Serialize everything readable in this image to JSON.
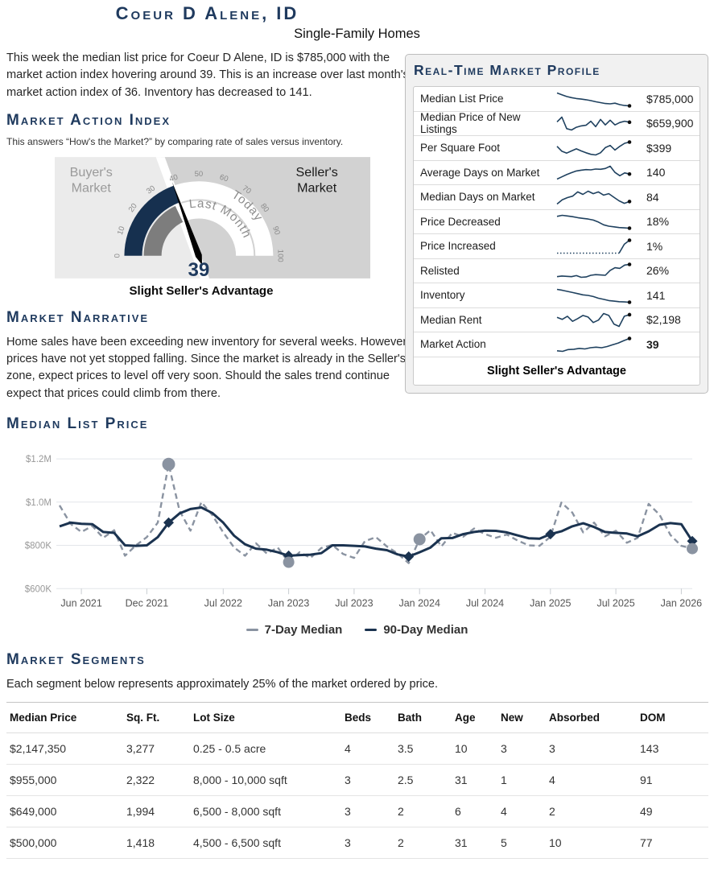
{
  "header": {
    "title": "Coeur D Alene, ID",
    "subtitle": "Single-Family Homes"
  },
  "intro": {
    "text": "This week the median list price for Coeur D Alene, ID is $785,000 with the market action index hovering around 39. This is an increase over last month's market action index of 36. Inventory has decreased to 141."
  },
  "mai": {
    "heading": "Market Action Index",
    "caption": "This answers “How's the Market?” by comparing rate of sales versus inventory."
  },
  "gauge": {
    "value": 39,
    "value_label": "39",
    "last_month": 36,
    "min": 0,
    "max": 100,
    "ticks": [
      0,
      10,
      20,
      30,
      40,
      50,
      60,
      70,
      80,
      90,
      100
    ],
    "left_zone_label": "Buyer's Market",
    "right_zone_label": "Seller's Market",
    "inner_arc_label": "Last Month",
    "outer_arc_label": "Today",
    "caption": "Slight Seller's Advantage",
    "colors": {
      "today_fill": "#16304f",
      "last_month_fill": "#7d7d7d",
      "left_bg": "#ebebeb",
      "right_bg": "#d2d2d2",
      "divider": "#ffffff",
      "needle": "#000000"
    }
  },
  "profile": {
    "title": "Real-Time Market Profile",
    "spark_color": "#1f415f",
    "dot_color": "#111111",
    "footer": "Slight Seller's Advantage",
    "rows": [
      {
        "label": "Median List Price",
        "value": "$785,000",
        "spark": [
          9.3,
          8.7,
          8.1,
          7.7,
          7.4,
          7.2,
          7.0,
          6.7,
          6.3,
          6.0,
          5.7,
          5.6,
          5.8,
          5.3,
          5.0,
          4.9
        ]
      },
      {
        "label": "Median Price of New Listings",
        "value": "$659,900",
        "spark": [
          7.6,
          9.0,
          5.6,
          5.2,
          6.0,
          6.4,
          6.6,
          7.8,
          6.2,
          8.3,
          6.7,
          8.1,
          6.7,
          7.4,
          7.8,
          7.5
        ]
      },
      {
        "label": "Per Square Foot",
        "value": "$399",
        "spark": [
          7.4,
          5.8,
          5.2,
          5.9,
          6.6,
          5.9,
          5.3,
          4.8,
          4.6,
          5.3,
          7.0,
          7.7,
          6.2,
          7.4,
          8.4,
          8.8
        ]
      },
      {
        "label": "Average Days on Market",
        "value": "140",
        "spark": [
          2.8,
          3.6,
          4.4,
          5.1,
          5.7,
          6.0,
          6.2,
          6.1,
          6.4,
          6.3,
          6.6,
          7.4,
          5.2,
          4.0,
          5.0,
          4.6
        ]
      },
      {
        "label": "Median Days on Market",
        "value": "84",
        "spark": [
          3.2,
          4.4,
          5.0,
          5.4,
          6.6,
          5.9,
          6.8,
          6.1,
          6.6,
          5.7,
          6.1,
          5.1,
          4.1,
          3.4,
          3.9
        ]
      },
      {
        "label": "Price Decreased",
        "value": "18%",
        "spark": [
          8.2,
          8.5,
          8.3,
          8.1,
          7.8,
          7.6,
          7.4,
          7.1,
          6.5,
          5.7,
          5.3,
          5.1,
          4.9,
          4.8,
          4.7
        ]
      },
      {
        "label": "Price Increased",
        "value": "1%",
        "dotted_until": 12,
        "spark": [
          1,
          1,
          1,
          1,
          1,
          1,
          1,
          1,
          1,
          1,
          1,
          1,
          1,
          5.5,
          7.5
        ]
      },
      {
        "label": "Relisted",
        "value": "26%",
        "spark": [
          3.0,
          3.2,
          3.1,
          3.0,
          3.3,
          2.8,
          2.9,
          3.4,
          3.6,
          3.5,
          3.4,
          4.9,
          5.7,
          5.5,
          6.5,
          6.7
        ]
      },
      {
        "label": "Inventory",
        "value": "141",
        "spark": [
          8.6,
          8.3,
          7.9,
          7.5,
          7.1,
          6.7,
          6.5,
          6.1,
          5.5,
          5.1,
          4.7,
          4.5,
          4.3,
          4.2,
          4.1
        ]
      },
      {
        "label": "Median Rent",
        "value": "$2,198",
        "spark": [
          6.6,
          6.1,
          6.9,
          5.6,
          6.3,
          7.1,
          6.7,
          5.3,
          5.9,
          7.6,
          7.1,
          4.9,
          4.3,
          6.9,
          7.3
        ]
      },
      {
        "label": "Market Action",
        "value": "39",
        "bold": true,
        "spark": [
          2.9,
          2.7,
          3.3,
          3.4,
          3.7,
          3.5,
          3.9,
          4.1,
          3.9,
          4.3,
          4.9,
          5.5,
          6.3,
          7.0
        ]
      }
    ]
  },
  "narrative": {
    "heading": "Market Narrative",
    "text": "Home sales have been exceeding new inventory for several weeks. However prices have not yet stopped falling. Since the market is already in the Seller's zone, expect prices to level off very soon. Should the sales trend continue expect that prices could climb from there."
  },
  "chart_data": {
    "type": "line",
    "title": "Median List Price",
    "xlabel": "",
    "ylabel": "",
    "grid": true,
    "legend_position": "bottom",
    "x_unit": "months (Apr 2021 – Feb 2026)",
    "ylim": [
      560,
      1260
    ],
    "y_ticks": [
      {
        "label": "$600K",
        "value": 600
      },
      {
        "label": "$800K",
        "value": 800
      },
      {
        "label": "$1.0M",
        "value": 1000
      },
      {
        "label": "$1.2M",
        "value": 1200
      }
    ],
    "x_ticks": [
      {
        "label": "Jun 2021",
        "idx": 2
      },
      {
        "label": "Dec 2021",
        "idx": 8
      },
      {
        "label": "Jul 2022",
        "idx": 15
      },
      {
        "label": "Jan 2023",
        "idx": 21
      },
      {
        "label": "Jul 2023",
        "idx": 27
      },
      {
        "label": "Jan 2024",
        "idx": 33
      },
      {
        "label": "Jul 2024",
        "idx": 39
      },
      {
        "label": "Jan 2025",
        "idx": 45
      },
      {
        "label": "Jul 2025",
        "idx": 51
      },
      {
        "label": "Jan 2026",
        "idx": 57
      }
    ],
    "series": [
      {
        "name": "7-Day Median",
        "style": "dashed",
        "color": "#8a93a1",
        "unit": "$K",
        "values": [
          985,
          900,
          862,
          890,
          835,
          870,
          752,
          800,
          838,
          905,
          1175,
          960,
          868,
          1000,
          940,
          860,
          790,
          752,
          810,
          762,
          790,
          722,
          768,
          742,
          788,
          802,
          760,
          742,
          820,
          838,
          795,
          762,
          718,
          828,
          870,
          795,
          858,
          840,
          878,
          852,
          835,
          850,
          822,
          800,
          798,
          840,
          998,
          952,
          860,
          905,
          842,
          868,
          812,
          835,
          992,
          942,
          848,
          798,
          785
        ]
      },
      {
        "name": "90-Day Median",
        "style": "solid",
        "color": "#1b3350",
        "unit": "$K",
        "values": [
          888,
          905,
          900,
          898,
          862,
          858,
          800,
          798,
          800,
          838,
          905,
          948,
          968,
          975,
          950,
          905,
          845,
          805,
          785,
          780,
          768,
          752,
          755,
          757,
          764,
          800,
          800,
          798,
          795,
          785,
          778,
          758,
          748,
          768,
          790,
          833,
          834,
          852,
          862,
          868,
          867,
          860,
          846,
          833,
          831,
          852,
          865,
          888,
          902,
          885,
          862,
          858,
          855,
          842,
          865,
          895,
          903,
          898,
          820
        ]
      }
    ],
    "markers": [
      {
        "x": 10,
        "y": 1175,
        "shape": "circle",
        "size": 8,
        "color": "#8a93a1"
      },
      {
        "x": 10,
        "y": 905,
        "shape": "diamond",
        "size": 6.5,
        "color": "#1b3350"
      },
      {
        "x": 21,
        "y": 752,
        "shape": "diamond",
        "size": 6.5,
        "color": "#1b3350"
      },
      {
        "x": 21,
        "y": 722,
        "shape": "circle",
        "size": 7,
        "color": "#8a93a1"
      },
      {
        "x": 32,
        "y": 748,
        "shape": "diamond",
        "size": 6.5,
        "color": "#1b3350"
      },
      {
        "x": 33,
        "y": 828,
        "shape": "circle",
        "size": 7.5,
        "color": "#8a93a1"
      },
      {
        "x": 45,
        "y": 852,
        "shape": "diamond",
        "size": 6.5,
        "color": "#1b3350"
      },
      {
        "x": 58,
        "y": 820,
        "shape": "diamond",
        "size": 6.5,
        "color": "#1b3350"
      },
      {
        "x": 58,
        "y": 785,
        "shape": "circle",
        "size": 7,
        "color": "#8a93a1"
      }
    ]
  },
  "segments": {
    "heading": "Market Segments",
    "caption": "Each segment below represents approximately 25% of the market ordered by price.",
    "headers": [
      "Median Price",
      "Sq. Ft.",
      "Lot Size",
      "Beds",
      "Bath",
      "Age",
      "New",
      "Absorbed",
      "DOM"
    ],
    "rows": [
      [
        "$2,147,350",
        "3,277",
        "0.25 - 0.5 acre",
        "4",
        "3.5",
        "10",
        "3",
        "3",
        "143"
      ],
      [
        "$955,000",
        "2,322",
        "8,000 - 10,000 sqft",
        "3",
        "2.5",
        "31",
        "1",
        "4",
        "91"
      ],
      [
        "$649,000",
        "1,994",
        "6,500 - 8,000 sqft",
        "3",
        "2",
        "6",
        "4",
        "2",
        "49"
      ],
      [
        "$500,000",
        "1,418",
        "4,500 - 6,500 sqft",
        "3",
        "2",
        "31",
        "5",
        "10",
        "77"
      ]
    ]
  }
}
